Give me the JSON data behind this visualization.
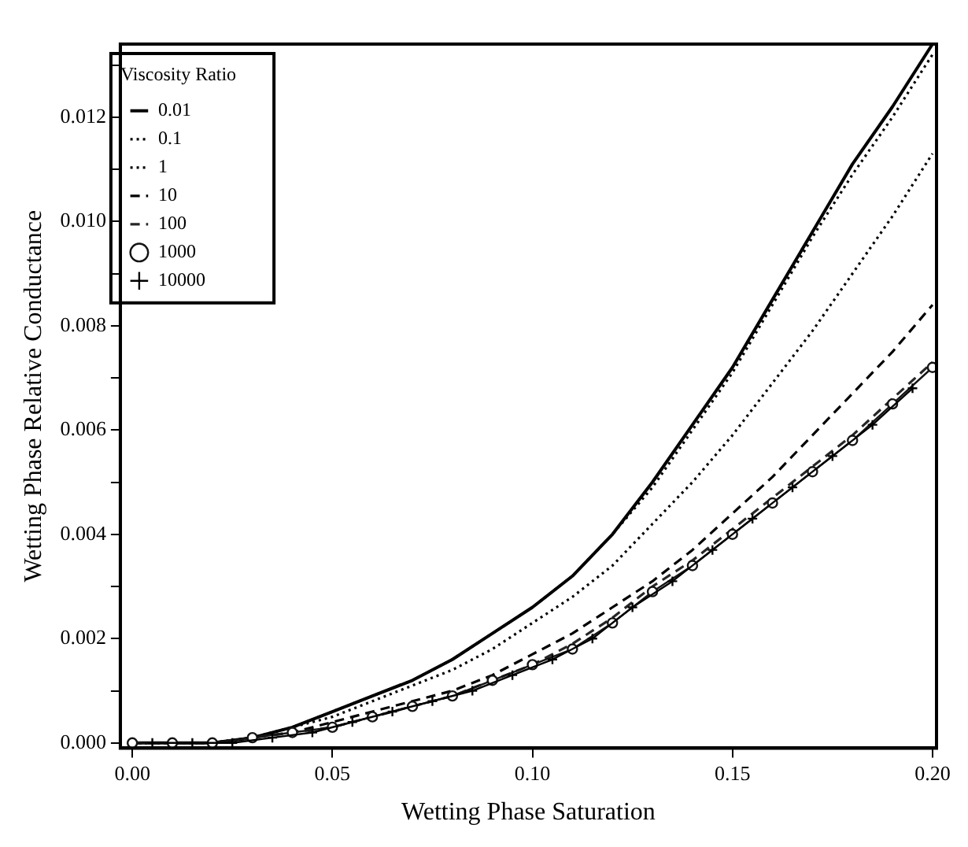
{
  "chart_data": {
    "type": "line",
    "xlabel": "Wetting Phase Saturation",
    "ylabel": "Wetting Phase Relative Conductance",
    "legend_title": "Viscosity Ratio",
    "legend": "top left",
    "grid": false,
    "x": [
      0,
      0.01,
      0.02,
      0.03,
      0.04,
      0.05,
      0.06,
      0.07,
      0.08,
      0.09,
      0.1,
      0.11,
      0.12,
      0.13,
      0.14,
      0.15,
      0.16,
      0.17,
      0.18,
      0.19,
      0.2
    ],
    "xlim": [
      -0.003,
      0.201
    ],
    "ylim": [
      -0.0001,
      0.0134
    ],
    "xticks": [
      {
        "value": 0,
        "label": "0.00"
      },
      {
        "value": 0.05,
        "label": "0.05"
      },
      {
        "value": 0.1,
        "label": "0.10"
      },
      {
        "value": 0.15,
        "label": "0.15"
      },
      {
        "value": 0.2,
        "label": "0.20"
      }
    ],
    "yticks": [
      {
        "value": 0,
        "label": "0.000"
      },
      {
        "value": 0.001,
        "label": null
      },
      {
        "value": 0.002,
        "label": "0.002"
      },
      {
        "value": 0.003,
        "label": null
      },
      {
        "value": 0.004,
        "label": "0.004"
      },
      {
        "value": 0.005,
        "label": null
      },
      {
        "value": 0.006,
        "label": "0.006"
      },
      {
        "value": 0.007,
        "label": null
      },
      {
        "value": 0.008,
        "label": "0.008"
      },
      {
        "value": 0.009,
        "label": null
      },
      {
        "value": 0.01,
        "label": "0.010"
      },
      {
        "value": 0.011,
        "label": null
      },
      {
        "value": 0.012,
        "label": "0.012"
      },
      {
        "value": 0.013,
        "label": null
      }
    ],
    "series": [
      {
        "name": "0.01",
        "color": "#000000",
        "line_style": "solid",
        "values": [
          0,
          0,
          0,
          0.0001,
          0.0003,
          0.0006,
          0.0009,
          0.0012,
          0.0016,
          0.0021,
          0.0026,
          0.0032,
          0.004,
          0.005,
          0.0061,
          0.0072,
          0.0085,
          0.0098,
          0.0111,
          0.0122,
          0.0134
        ]
      },
      {
        "name": "0.1",
        "color": "#000000",
        "line_style": "dotted",
        "values": [
          0,
          0,
          0,
          0.0001,
          0.0003,
          0.0006,
          0.0009,
          0.0012,
          0.0016,
          0.0021,
          0.0026,
          0.0032,
          0.004,
          0.0049,
          0.006,
          0.0071,
          0.0084,
          0.0097,
          0.0109,
          0.012,
          0.0132
        ]
      },
      {
        "name": "1",
        "color": "#000000",
        "line_style": "dotted",
        "values": [
          0,
          0,
          0,
          0.0001,
          0.0003,
          0.0005,
          0.0008,
          0.0011,
          0.0014,
          0.0018,
          0.0023,
          0.0028,
          0.0034,
          0.0042,
          0.005,
          0.0059,
          0.0069,
          0.0079,
          0.009,
          0.0101,
          0.0113
        ]
      },
      {
        "name": "10",
        "color": "#000000",
        "line_style": "dashed",
        "values": [
          0,
          0,
          0,
          0.0001,
          0.0002,
          0.0004,
          0.0006,
          0.0008,
          0.001,
          0.0013,
          0.0017,
          0.0021,
          0.0026,
          0.0031,
          0.0037,
          0.0044,
          0.0051,
          0.0059,
          0.0067,
          0.0075,
          0.0084
        ]
      },
      {
        "name": "100",
        "color": "#262626",
        "line_style": "dashed",
        "values": [
          0,
          0,
          0,
          0.0001,
          0.0002,
          0.0003,
          0.0005,
          0.0007,
          0.0009,
          0.0012,
          0.0015,
          0.0019,
          0.0024,
          0.003,
          0.0035,
          0.0041,
          0.0047,
          0.0053,
          0.0059,
          0.0066,
          0.0073
        ]
      },
      {
        "name": "1000",
        "color": "#141414",
        "line_style": "solid",
        "marker": "circle",
        "values": [
          0,
          0,
          0,
          0.0001,
          0.0002,
          0.0003,
          0.0005,
          0.0007,
          0.0009,
          0.0012,
          0.0015,
          0.0018,
          0.0023,
          0.0029,
          0.0034,
          0.004,
          0.0046,
          0.0052,
          0.0058,
          0.0065,
          0.0072
        ]
      },
      {
        "name": "10000",
        "color": "#000000",
        "line_style": "solid",
        "marker": "cross",
        "x": [
          0.005,
          0.015,
          0.025,
          0.035,
          0.045,
          0.055,
          0.065,
          0.075,
          0.085,
          0.095,
          0.105,
          0.115,
          0.125,
          0.135,
          0.145,
          0.155,
          0.165,
          0.175,
          0.185,
          0.195
        ],
        "values": [
          0,
          0,
          0,
          0.0001,
          0.0002,
          0.0004,
          0.0006,
          0.0008,
          0.001,
          0.0013,
          0.0016,
          0.002,
          0.0026,
          0.0031,
          0.0037,
          0.0043,
          0.0049,
          0.0055,
          0.0061,
          0.0068
        ]
      }
    ]
  }
}
